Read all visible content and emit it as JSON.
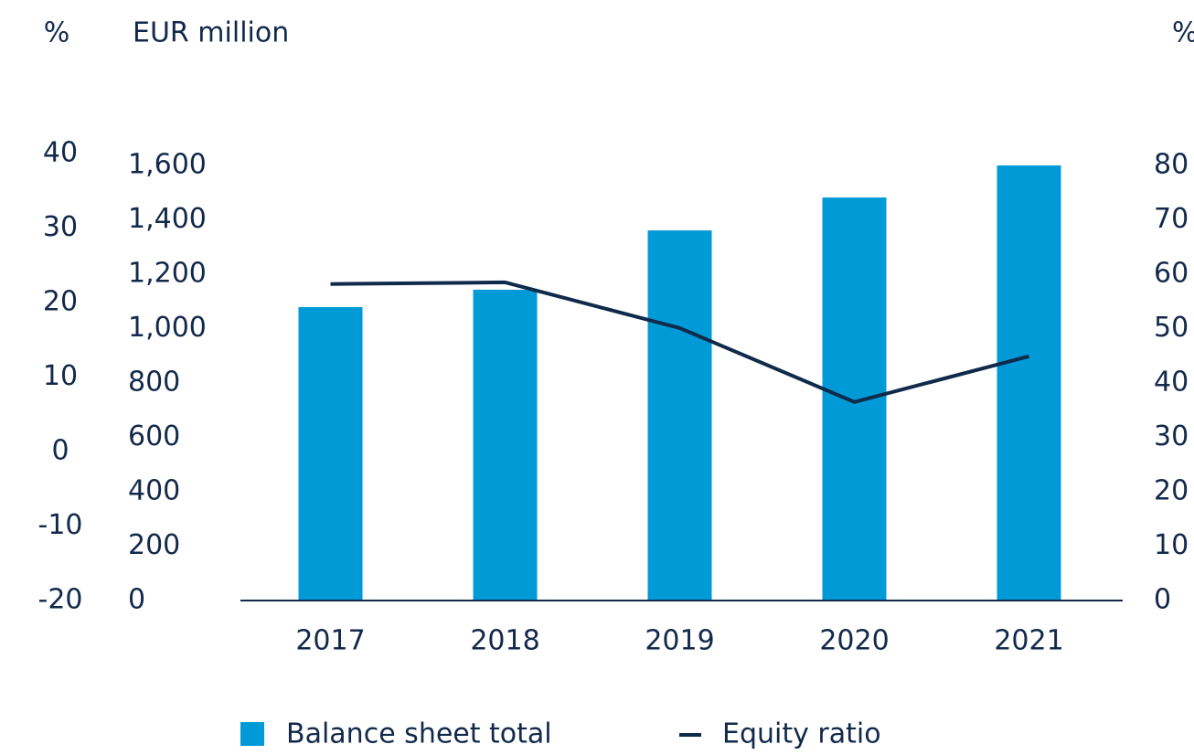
{
  "chart_data": {
    "type": "bar",
    "categories": [
      "2017",
      "2018",
      "2019",
      "2020",
      "2021"
    ],
    "series": [
      {
        "name": "Balance sheet total",
        "color": "#009ad6",
        "values": [
          1079,
          1143,
          1361,
          1482,
          1600
        ]
      },
      {
        "name": "Equity ratio",
        "color": "#0f2a4a",
        "axis": "y2",
        "type": "line",
        "values": [
          58.2,
          58.5,
          50.1,
          36.5,
          44.9
        ]
      }
    ],
    "ylabel": "EUR million",
    "ylim": [
      0,
      1600
    ],
    "yticks": [
      0,
      200,
      400,
      600,
      800,
      {
        "value": 1000,
        "label": "1,000"
      },
      {
        "value": 1200,
        "label": "1,200"
      },
      {
        "value": 1400,
        "label": "1,400"
      },
      {
        "value": 1600,
        "label": "1,600"
      }
    ],
    "y2label": "%",
    "y2lim": [
      0,
      80
    ],
    "y2ticks": [
      0,
      10,
      20,
      30,
      40,
      50,
      60,
      70,
      80
    ],
    "y3label": "%",
    "y3lim": [
      -20,
      40
    ],
    "y3ticks": [
      -20,
      -10,
      0,
      10,
      20,
      30,
      40
    ],
    "legend": "bottom"
  }
}
